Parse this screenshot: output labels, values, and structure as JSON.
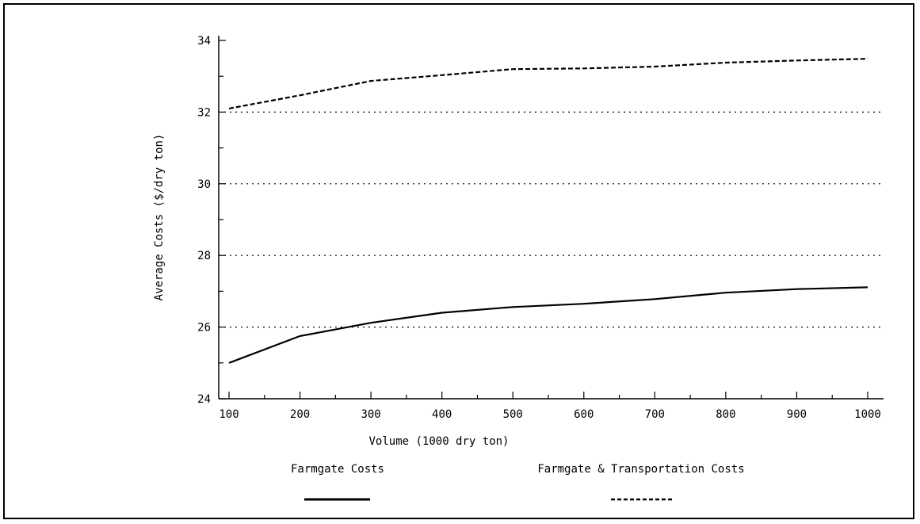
{
  "chart_data": {
    "type": "line",
    "title": "",
    "xlabel": "Volume (1000 dry ton)",
    "ylabel": "Average Costs ($/dry ton)",
    "xlim": [
      100,
      1000
    ],
    "ylim": [
      24,
      34
    ],
    "x_ticks": [
      100,
      200,
      300,
      400,
      500,
      600,
      700,
      800,
      900,
      1000
    ],
    "y_ticks": [
      24,
      26,
      28,
      30,
      32,
      34
    ],
    "grid": "horizontal dotted at 26, 28, 30, 32",
    "legend_position": "bottom",
    "series": [
      {
        "name": "Farmgate Costs",
        "style": "solid",
        "color": "#000000",
        "x": [
          100,
          200,
          300,
          400,
          500,
          600,
          700,
          800,
          900,
          1000
        ],
        "y": [
          25.0,
          25.75,
          26.12,
          26.4,
          26.56,
          26.65,
          26.78,
          26.96,
          27.06,
          27.11
        ]
      },
      {
        "name": "Farmgate & Transportation Costs",
        "style": "dashed",
        "color": "#000000",
        "x": [
          100,
          200,
          300,
          400,
          500,
          600,
          700,
          800,
          900,
          1000
        ],
        "y": [
          32.1,
          32.47,
          32.87,
          33.03,
          33.2,
          33.22,
          33.27,
          33.38,
          33.44,
          33.49
        ]
      }
    ]
  }
}
